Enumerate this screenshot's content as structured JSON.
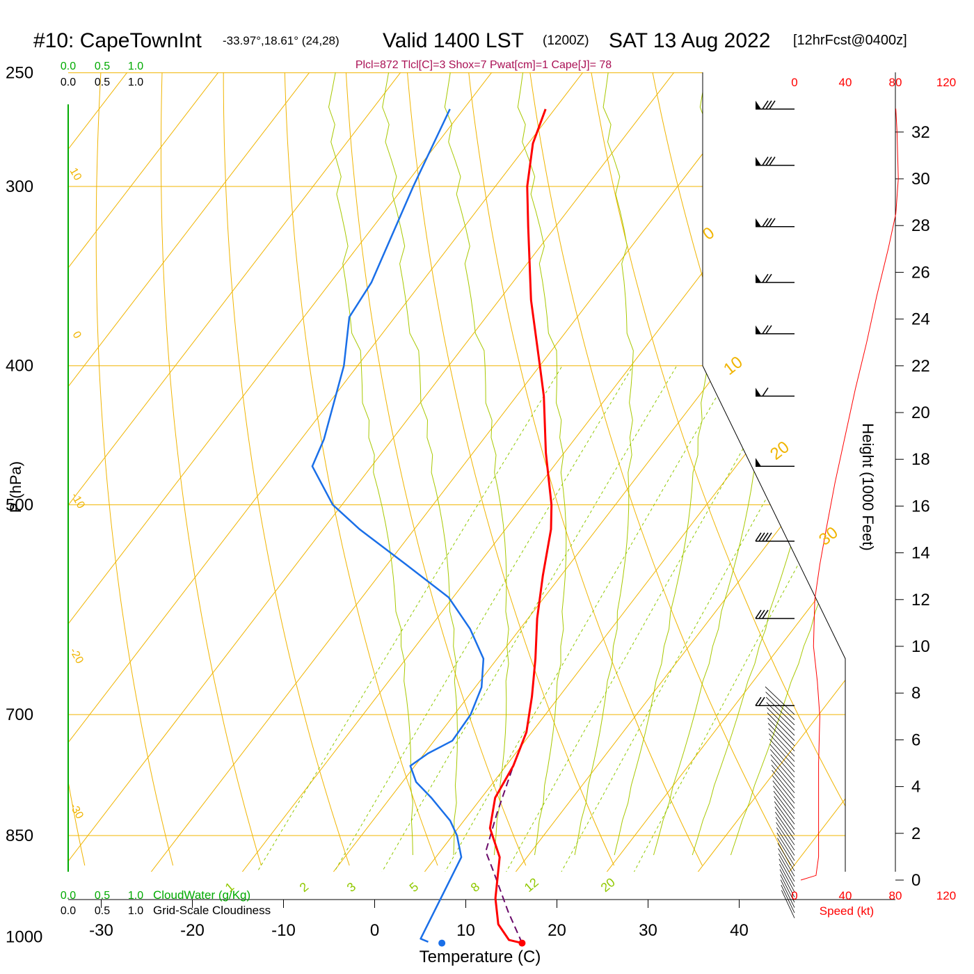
{
  "header": {
    "station": "#10: CapeTownInt",
    "coords": "-33.97°,18.61° (24,28)",
    "valid": "Valid 1400 LST",
    "zulu": "(1200Z)",
    "date": "SAT 13 Aug 2022",
    "forecast": "[12hrFcst@0400z]",
    "indices": "Plcl=872 Tlcl[C]=3 Shox=7 Pwat[cm]=1 Cape[J]= 78"
  },
  "colors": {
    "isotherm": "#f0b400",
    "adiabat": "#a8c800",
    "mixing": "#90c800",
    "temperature": "#ff0000",
    "dewpoint": "#1a6fe8",
    "parcel": "#6a0a6a",
    "indices_text": "#aa1155",
    "cloud_green": "#00aa00",
    "speed_red": "#ff0000"
  },
  "chart_data": {
    "type": "skew-t",
    "xlabel": "Temperature (C)",
    "ylabel": "P (hPa)",
    "right_axis_label": "Height (1000 Feet)",
    "temperature_ticks": [
      "-30",
      "-20",
      "-10",
      "0",
      "10",
      "20",
      "30",
      "40"
    ],
    "pressure_ticks": [
      "250",
      "300",
      "400",
      "500",
      "700",
      "850",
      "1000"
    ],
    "height_ticks": [
      "0",
      "2",
      "4",
      "6",
      "8",
      "10",
      "12",
      "14",
      "16",
      "18",
      "20",
      "22",
      "24",
      "26",
      "28",
      "30",
      "32"
    ],
    "speed_axis_label": "Speed (kt)",
    "speed_ticks": [
      "0",
      "40",
      "80",
      "120"
    ],
    "cloud_scale_ticks": [
      "0.0",
      "0.5",
      "1.0"
    ],
    "cloudwater_label": "CloudWater (g/Kg)",
    "cloudiness_label": "Grid-Scale Cloudiness",
    "isotherm_labels": [
      "10",
      "0",
      "-10",
      "-20",
      "-30",
      "0",
      "10",
      "20",
      "30"
    ],
    "mixing_ratio_labels": [
      "1",
      "2",
      "3",
      "5",
      "8",
      "12",
      "20"
    ],
    "surface": {
      "temperature_c": 16.7,
      "dewpoint_c": 7.9,
      "pressure_hpa": 1010
    },
    "temperature_profile": [
      {
        "p": 1010,
        "t": 16.7
      },
      {
        "p": 1005,
        "t": 15.0
      },
      {
        "p": 980,
        "t": 12.5
      },
      {
        "p": 940,
        "t": 10.0
      },
      {
        "p": 880,
        "t": 7.0
      },
      {
        "p": 840,
        "t": 3.5
      },
      {
        "p": 800,
        "t": 1.5
      },
      {
        "p": 760,
        "t": 0.8
      },
      {
        "p": 720,
        "t": -0.6
      },
      {
        "p": 680,
        "t": -3.0
      },
      {
        "p": 640,
        "t": -5.8
      },
      {
        "p": 600,
        "t": -9.0
      },
      {
        "p": 560,
        "t": -12.0
      },
      {
        "p": 520,
        "t": -15.0
      },
      {
        "p": 500,
        "t": -17.0
      },
      {
        "p": 460,
        "t": -22.0
      },
      {
        "p": 420,
        "t": -27.0
      },
      {
        "p": 400,
        "t": -30.0
      },
      {
        "p": 360,
        "t": -36.5
      },
      {
        "p": 320,
        "t": -43.0
      },
      {
        "p": 300,
        "t": -46.5
      },
      {
        "p": 280,
        "t": -49.5
      },
      {
        "p": 265,
        "t": -51.0
      }
    ],
    "dewpoint_profile": [
      {
        "p": 1008,
        "t": 6.3
      },
      {
        "p": 1003,
        "t": 5.2
      },
      {
        "p": 960,
        "t": 4.4
      },
      {
        "p": 880,
        "t": 2.8
      },
      {
        "p": 850,
        "t": 0.5
      },
      {
        "p": 830,
        "t": -1.5
      },
      {
        "p": 800,
        "t": -5.5
      },
      {
        "p": 780,
        "t": -8.5
      },
      {
        "p": 760,
        "t": -10.5
      },
      {
        "p": 745,
        "t": -9.6
      },
      {
        "p": 730,
        "t": -8.0
      },
      {
        "p": 700,
        "t": -8.2
      },
      {
        "p": 670,
        "t": -9.3
      },
      {
        "p": 640,
        "t": -11.5
      },
      {
        "p": 610,
        "t": -15.5
      },
      {
        "p": 580,
        "t": -20.5
      },
      {
        "p": 550,
        "t": -28.0
      },
      {
        "p": 520,
        "t": -36.0
      },
      {
        "p": 500,
        "t": -41.0
      },
      {
        "p": 470,
        "t": -46.5
      },
      {
        "p": 450,
        "t": -47.5
      },
      {
        "p": 400,
        "t": -51.5
      },
      {
        "p": 370,
        "t": -55.0
      },
      {
        "p": 350,
        "t": -55.5
      },
      {
        "p": 300,
        "t": -59.0
      },
      {
        "p": 265,
        "t": -61.5
      }
    ],
    "parcel_profile": [
      {
        "p": 1010,
        "t": 16.7
      },
      {
        "p": 960,
        "t": 12.5
      },
      {
        "p": 900,
        "t": 7.5
      },
      {
        "p": 872,
        "t": 5.0
      },
      {
        "p": 820,
        "t": 3.0
      },
      {
        "p": 760,
        "t": 0.8
      }
    ],
    "wind_speed_profile": [
      {
        "h": 0.0,
        "kt": 5
      },
      {
        "h": 0.2,
        "kt": 17
      },
      {
        "h": 1.0,
        "kt": 19
      },
      {
        "h": 3.0,
        "kt": 19
      },
      {
        "h": 5.0,
        "kt": 19
      },
      {
        "h": 7.0,
        "kt": 20
      },
      {
        "h": 8.5,
        "kt": 18
      },
      {
        "h": 10.0,
        "kt": 15
      },
      {
        "h": 12.0,
        "kt": 16
      },
      {
        "h": 13.5,
        "kt": 20
      },
      {
        "h": 15.0,
        "kt": 25
      },
      {
        "h": 17.0,
        "kt": 32
      },
      {
        "h": 19.0,
        "kt": 40
      },
      {
        "h": 21.0,
        "kt": 48
      },
      {
        "h": 23.0,
        "kt": 57
      },
      {
        "h": 25.0,
        "kt": 65
      },
      {
        "h": 27.0,
        "kt": 74
      },
      {
        "h": 28.5,
        "kt": 80
      },
      {
        "h": 30.0,
        "kt": 82
      },
      {
        "h": 32.0,
        "kt": 81
      },
      {
        "h": 33.0,
        "kt": 80
      }
    ],
    "wind_barbs": [
      {
        "p": 265,
        "kt": 80
      },
      {
        "p": 290,
        "kt": 80
      },
      {
        "p": 320,
        "kt": 80
      },
      {
        "p": 350,
        "kt": 75
      },
      {
        "p": 380,
        "kt": 70
      },
      {
        "p": 420,
        "kt": 65
      },
      {
        "p": 470,
        "kt": 55
      },
      {
        "p": 530,
        "kt": 45
      },
      {
        "p": 600,
        "kt": 35
      },
      {
        "p": 690,
        "kt": 25
      }
    ]
  }
}
